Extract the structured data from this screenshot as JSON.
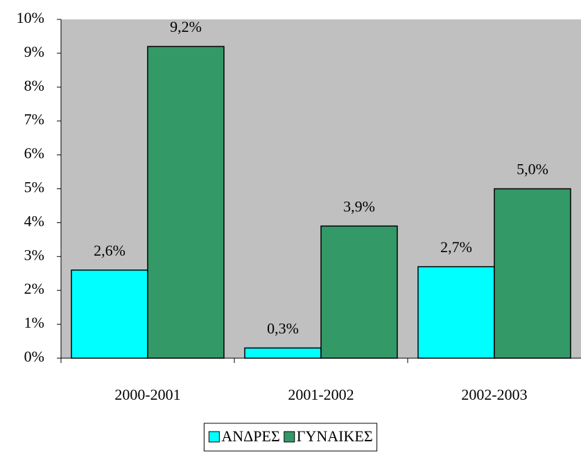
{
  "chart_data": {
    "type": "bar",
    "categories": [
      "2000-2001",
      "2001-2002",
      "2002-2003"
    ],
    "series": [
      {
        "name": "ΑΝΔΡΕΣ",
        "color": "#00ffff",
        "values": [
          2.6,
          0.3,
          2.7
        ],
        "value_labels": [
          "2,6%",
          "0,3%",
          "2,7%"
        ]
      },
      {
        "name": "ΓΥΝΑΙΚΕΣ",
        "color": "#339966",
        "values": [
          9.2,
          3.9,
          5.0
        ],
        "value_labels": [
          "9,2%",
          "3,9%",
          "5,0%"
        ]
      }
    ],
    "ylim": [
      0,
      10
    ],
    "yticks": [
      {
        "value": 0,
        "label": "0%"
      },
      {
        "value": 1,
        "label": "1%"
      },
      {
        "value": 2,
        "label": "2%"
      },
      {
        "value": 3,
        "label": "3%"
      },
      {
        "value": 4,
        "label": "4%"
      },
      {
        "value": 5,
        "label": "5%"
      },
      {
        "value": 6,
        "label": "6%"
      },
      {
        "value": 7,
        "label": "7%"
      },
      {
        "value": 8,
        "label": "8%"
      },
      {
        "value": 9,
        "label": "9%"
      },
      {
        "value": 10,
        "label": "10%"
      }
    ],
    "plot_background": "#c0c0c0",
    "legend": "bottom"
  }
}
